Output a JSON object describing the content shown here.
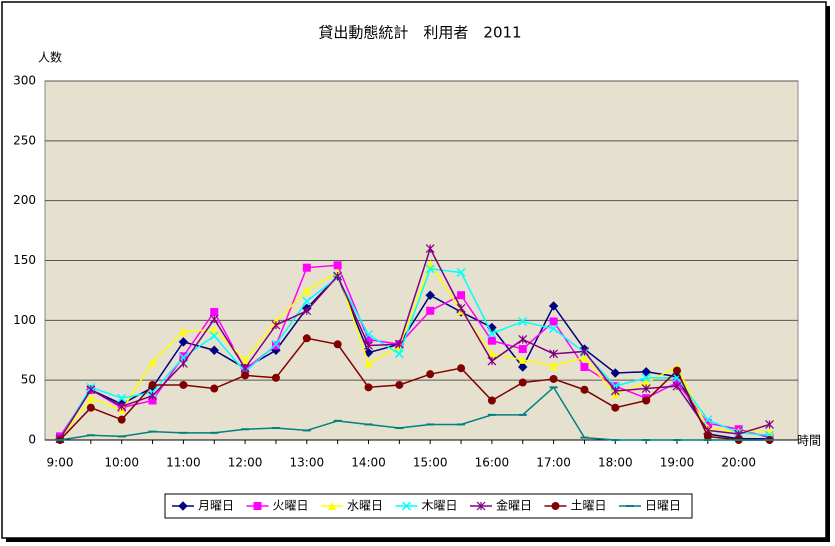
{
  "chart_data": {
    "type": "line",
    "title": "貸出動態統計　利用者　2011",
    "y_label": "人数",
    "x_label": "時間",
    "categories": [
      "9:00",
      null,
      "10:00",
      null,
      "11:00",
      null,
      "12:00",
      null,
      "13:00",
      null,
      "14:00",
      null,
      "15:00",
      null,
      "16:00",
      null,
      "17:00",
      null,
      "18:00",
      null,
      "19:00",
      null,
      "20:00",
      null
    ],
    "ylim": [
      0,
      300
    ],
    "yticks": [
      0,
      50,
      100,
      150,
      200,
      250,
      300
    ],
    "grid": true,
    "legend": "bottom",
    "series": [
      {
        "name": "月曜日",
        "color": "#000080",
        "marker": "diamond",
        "values": [
          1,
          42,
          30,
          44,
          82,
          75,
          60,
          75,
          110,
          137,
          73,
          80,
          121,
          107,
          94,
          61,
          112,
          76,
          56,
          57,
          53,
          5,
          1,
          1
        ]
      },
      {
        "name": "火曜日",
        "color": "#ff00ff",
        "marker": "square",
        "values": [
          3,
          42,
          27,
          33,
          70,
          107,
          59,
          79,
          144,
          146,
          84,
          80,
          108,
          121,
          83,
          76,
          99,
          61,
          45,
          35,
          48,
          14,
          9,
          2
        ]
      },
      {
        "name": "水曜日",
        "color": "#ffff00",
        "marker": "triangle",
        "values": [
          1,
          35,
          25,
          65,
          91,
          92,
          67,
          99,
          125,
          140,
          64,
          78,
          147,
          108,
          72,
          67,
          62,
          69,
          38,
          48,
          61,
          10,
          7,
          7
        ]
      },
      {
        "name": "木曜日",
        "color": "#00ffff",
        "marker": "x",
        "values": [
          1,
          44,
          35,
          40,
          69,
          87,
          57,
          80,
          116,
          136,
          88,
          72,
          143,
          140,
          89,
          99,
          93,
          73,
          45,
          52,
          52,
          17,
          6,
          4
        ]
      },
      {
        "name": "金曜日",
        "color": "#800080",
        "marker": "asterisk",
        "values": [
          1,
          42,
          28,
          37,
          64,
          101,
          60,
          96,
          108,
          137,
          79,
          80,
          160,
          110,
          66,
          84,
          72,
          74,
          41,
          43,
          45,
          8,
          5,
          13
        ]
      },
      {
        "name": "土曜日",
        "color": "#800000",
        "marker": "circle",
        "values": [
          0,
          27,
          17,
          46,
          46,
          43,
          54,
          52,
          85,
          80,
          44,
          46,
          55,
          60,
          33,
          48,
          51,
          42,
          27,
          33,
          58,
          3,
          0,
          0
        ]
      },
      {
        "name": "日曜日",
        "color": "#008080",
        "marker": "dash",
        "values": [
          0,
          4,
          3,
          7,
          6,
          6,
          9,
          10,
          8,
          16,
          13,
          10,
          13,
          13,
          21,
          21,
          44,
          2,
          0,
          0,
          0,
          0,
          0,
          0
        ]
      }
    ]
  }
}
